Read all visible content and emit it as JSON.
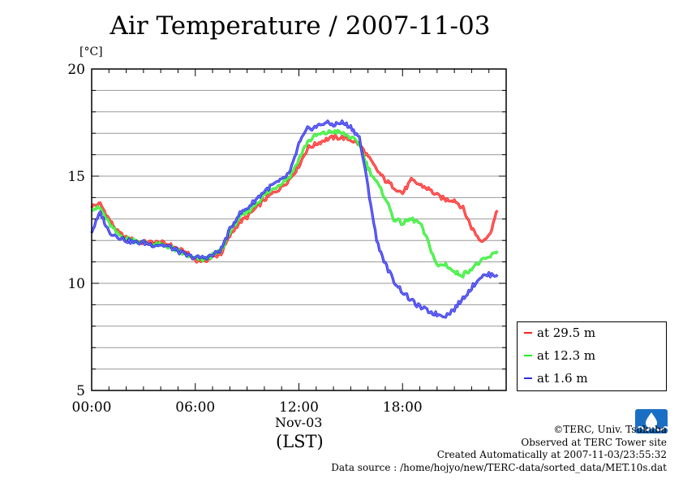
{
  "title": "Air Temperature / 2007-11-03",
  "unit_label": "[°C]",
  "x_day_label": "Nov-03",
  "x_tz_label": "(LST)",
  "legend": [
    {
      "label": "at 29.5 m",
      "color": "#ff2020"
    },
    {
      "label": "at 12.3 m",
      "color": "#22ee22"
    },
    {
      "label": "at 1.6 m",
      "color": "#2a2aee"
    }
  ],
  "credits": {
    "copyright": "©TERC, Univ. Tsukuba",
    "observed": "Observed at TERC Tower site",
    "created": "Created Automatically at 2007-11-03/23:55:32",
    "source": "Data source : /home/hojyo/new/TERC-data/sorted_data/MET.10s.dat"
  },
  "chart_data": {
    "type": "line",
    "title": "Air Temperature / 2007-11-03",
    "ylabel": "[°C]",
    "xlabel": "(LST)",
    "x_unit": "hour",
    "xlim": [
      0,
      24
    ],
    "ylim": [
      5,
      20
    ],
    "x_ticks": [
      0,
      6,
      12,
      18
    ],
    "x_tick_labels": [
      "00:00",
      "06:00",
      "12:00",
      "18:00"
    ],
    "y_ticks": [
      5,
      10,
      15,
      20
    ],
    "y_tick_labels": [
      "5",
      "10",
      "15",
      "20"
    ],
    "grid": true,
    "legend_position": "bottom-right outside",
    "series": [
      {
        "name": "at 29.5 m",
        "color": "#ff2020",
        "x": [
          0,
          0.5,
          1,
          1.5,
          2,
          2.5,
          3,
          3.5,
          4,
          4.5,
          5,
          5.5,
          6,
          6.5,
          7,
          7.5,
          8,
          8.5,
          9,
          9.5,
          10,
          10.5,
          11,
          11.5,
          12,
          12.5,
          13,
          13.5,
          14,
          14.5,
          15,
          15.5,
          16,
          16.5,
          17,
          17.5,
          18,
          18.5,
          19,
          19.5,
          20,
          20.5,
          21,
          21.5,
          22,
          22.5,
          23,
          23.5
        ],
        "y": [
          13.6,
          13.7,
          13.0,
          12.4,
          12.1,
          12.0,
          11.9,
          11.9,
          11.9,
          11.8,
          11.6,
          11.4,
          11.1,
          11.05,
          11.2,
          11.4,
          12.2,
          12.8,
          13.1,
          13.5,
          13.9,
          14.2,
          14.5,
          14.9,
          15.5,
          16.3,
          16.5,
          16.7,
          16.8,
          16.8,
          16.7,
          16.5,
          15.9,
          15.3,
          14.8,
          14.5,
          14.2,
          14.8,
          14.6,
          14.4,
          14.1,
          13.9,
          13.9,
          13.5,
          12.6,
          12.0,
          12.2,
          13.4
        ]
      },
      {
        "name": "at 12.3 m",
        "color": "#22ee22",
        "x": [
          0,
          0.5,
          1,
          1.5,
          2,
          2.5,
          3,
          3.5,
          4,
          4.5,
          5,
          5.5,
          6,
          6.5,
          7,
          7.5,
          8,
          8.5,
          9,
          9.5,
          10,
          10.5,
          11,
          11.5,
          12,
          12.5,
          13,
          13.5,
          14,
          14.5,
          15,
          15.5,
          16,
          16.5,
          17,
          17.5,
          18,
          18.5,
          19,
          19.5,
          20,
          20.5,
          21,
          21.5,
          22,
          22.5,
          23,
          23.5
        ],
        "y": [
          13.5,
          13.5,
          12.8,
          12.3,
          12.1,
          12.0,
          11.9,
          11.8,
          11.8,
          11.7,
          11.5,
          11.3,
          11.15,
          11.1,
          11.3,
          11.5,
          12.4,
          13.0,
          13.3,
          13.7,
          14.1,
          14.4,
          14.7,
          15.0,
          15.8,
          16.6,
          16.9,
          17.0,
          17.1,
          17.0,
          16.8,
          16.5,
          15.4,
          14.7,
          14.0,
          13.0,
          12.8,
          13.0,
          12.8,
          11.9,
          10.8,
          10.9,
          10.5,
          10.4,
          10.7,
          11.0,
          11.2,
          11.5
        ]
      },
      {
        "name": "at 1.6 m",
        "color": "#2a2aee",
        "x": [
          0,
          0.5,
          1,
          1.5,
          2,
          2.5,
          3,
          3.5,
          4,
          4.5,
          5,
          5.5,
          6,
          6.5,
          7,
          7.5,
          8,
          8.5,
          9,
          9.5,
          10,
          10.5,
          11,
          11.5,
          12,
          12.5,
          13,
          13.5,
          14,
          14.5,
          15,
          15.5,
          16,
          16.5,
          17,
          17.5,
          18,
          18.5,
          19,
          19.5,
          20,
          20.5,
          21,
          21.5,
          22,
          22.5,
          23,
          23.5
        ],
        "y": [
          12.4,
          13.3,
          12.4,
          12.2,
          12.0,
          11.9,
          11.9,
          11.8,
          11.8,
          11.7,
          11.5,
          11.3,
          11.2,
          11.2,
          11.3,
          11.6,
          12.5,
          13.2,
          13.5,
          13.9,
          14.3,
          14.6,
          14.8,
          15.2,
          16.5,
          17.2,
          17.3,
          17.5,
          17.4,
          17.5,
          17.3,
          16.8,
          14.5,
          12.0,
          10.9,
          10.1,
          9.6,
          9.2,
          8.9,
          8.7,
          8.55,
          8.5,
          8.8,
          9.3,
          9.8,
          10.3,
          10.4,
          10.4
        ]
      }
    ]
  }
}
